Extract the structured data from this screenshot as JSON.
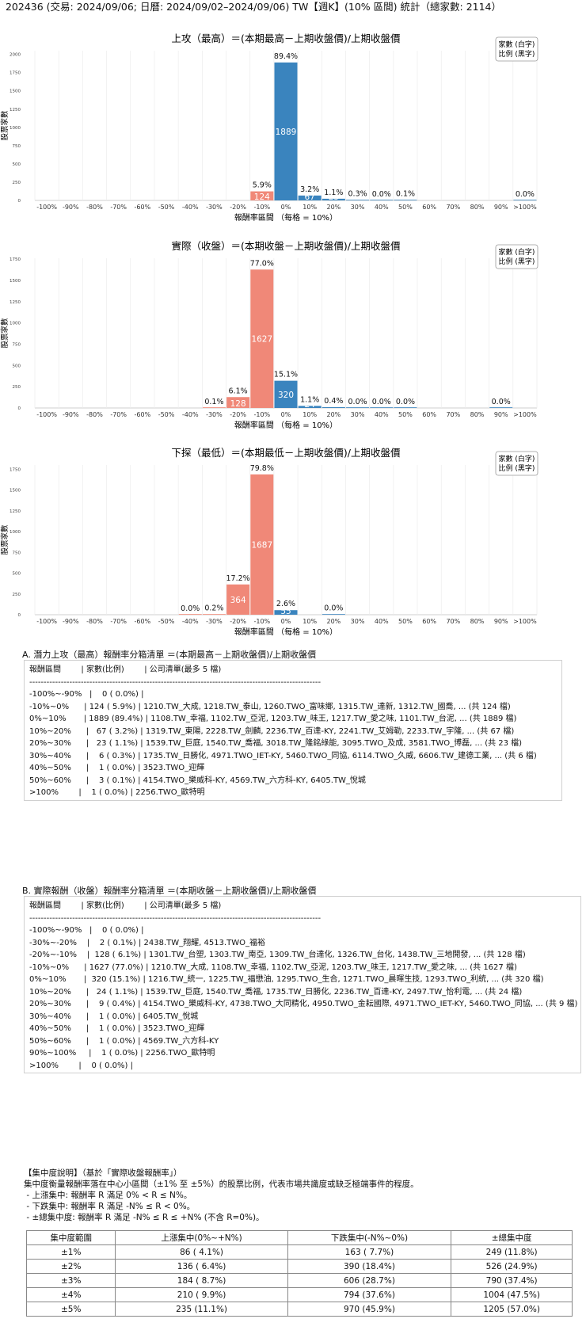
{
  "page_title": "202436 (交易: 2024/09/06; 日曆: 2024/09/02–2024/09/06) TW【週K】(10% 區間) 統計（總家數: 2114）",
  "legend_box": [
    "家數 (白字)",
    "比例 (黑字)"
  ],
  "chart_data": [
    {
      "type": "bar",
      "title": "上攻（最高）＝(本期最高－上期收盤價)/上期收盤價",
      "xlabel": "報酬率區間 （每格 = 10%）",
      "ylabel": "股票家數",
      "categories": [
        "-100%",
        "-90%",
        "-80%",
        "-70%",
        "-60%",
        "-50%",
        "-40%",
        "-30%",
        "-20%",
        "-10%",
        "0%",
        "10%",
        "20%",
        "30%",
        "40%",
        "50%",
        "60%",
        "70%",
        "80%",
        "90%",
        ">100%"
      ],
      "values": [
        0,
        0,
        0,
        0,
        0,
        0,
        0,
        0,
        0,
        124,
        1889,
        67,
        23,
        6,
        1,
        3,
        0,
        0,
        0,
        0,
        1
      ],
      "pct_labels": [
        "",
        "",
        "",
        "",
        "",
        "",
        "",
        "",
        "",
        "5.9%",
        "89.4%",
        "3.2%",
        "1.1%",
        "0.3%",
        "0.0%",
        "0.1%",
        "",
        "",
        "",
        "",
        "0.0%"
      ],
      "yticks": [
        0,
        250,
        500,
        750,
        1000,
        1250,
        1500,
        1750,
        2000
      ],
      "ylim": [
        0,
        2050
      ]
    },
    {
      "type": "bar",
      "title": "實際（收盤）＝(本期收盤－上期收盤價)/上期收盤價",
      "xlabel": "報酬率區間 （每格 = 10%）",
      "ylabel": "股票家數",
      "categories": [
        "-100%",
        "-90%",
        "-80%",
        "-70%",
        "-60%",
        "-50%",
        "-40%",
        "-30%",
        "-20%",
        "-10%",
        "0%",
        "10%",
        "20%",
        "30%",
        "40%",
        "50%",
        "60%",
        "70%",
        "80%",
        "90%",
        ">100%"
      ],
      "values": [
        0,
        0,
        0,
        0,
        0,
        0,
        0,
        2,
        128,
        1627,
        320,
        24,
        9,
        1,
        1,
        1,
        0,
        0,
        0,
        1,
        0
      ],
      "pct_labels": [
        "",
        "",
        "",
        "",
        "",
        "",
        "",
        "0.1%",
        "6.1%",
        "77.0%",
        "15.1%",
        "1.1%",
        "0.4%",
        "0.0%",
        "0.0%",
        "0.0%",
        "",
        "",
        "",
        "0.0%",
        ""
      ],
      "yticks": [
        0,
        250,
        500,
        750,
        1000,
        1250,
        1500,
        1750
      ],
      "ylim": [
        0,
        1760
      ]
    },
    {
      "type": "bar",
      "title": "下探（最低）＝(本期最低－上期收盤價)/上期收盤價",
      "xlabel": "報酬率區間 （每格 = 10%）",
      "ylabel": "股票家數",
      "categories": [
        "-100%",
        "-90%",
        "-80%",
        "-70%",
        "-60%",
        "-50%",
        "-40%",
        "-30%",
        "-20%",
        "-10%",
        "0%",
        "10%",
        "20%",
        "30%",
        "40%",
        "50%",
        "60%",
        "70%",
        "80%",
        "90%",
        ">100%"
      ],
      "values": [
        0,
        0,
        0,
        0,
        0,
        0,
        1,
        4,
        364,
        1687,
        55,
        0,
        3,
        0,
        0,
        0,
        0,
        0,
        0,
        0,
        0
      ],
      "pct_labels": [
        "",
        "",
        "",
        "",
        "",
        "",
        "0.0%",
        "0.2%",
        "17.2%",
        "79.8%",
        "2.6%",
        "",
        "0.0%",
        "",
        "",
        "",
        "",
        "",
        "",
        "",
        ""
      ],
      "yticks": [
        0,
        250,
        500,
        750,
        1000,
        1250,
        1500,
        1750
      ],
      "ylim": [
        0,
        1800
      ]
    }
  ],
  "colors": {
    "negative": "#f08878",
    "positive": "#3a84be"
  },
  "section_a": {
    "title": "A. 潛力上攻（最高）報酬率分箱清單 ＝(本期最高－上期收盤價)/上期收盤價",
    "lines": [
      "報酬區間        | 家數(比例)        | 公司清單(最多 5 檔)",
      "------------------------------------------------------------------------------------------------------",
      "-100%~-90%   |    0 ( 0.0%) |",
      "-10%~0%      | 124 ( 5.9%) | 1210.TW_大成, 1218.TW_泰山, 1260.TWO_富味鄉, 1315.TW_達新, 1312.TW_國喬, ... (共 124 檔)",
      "0%~10%       | 1889 (89.4%) | 1108.TW_幸福, 1102.TW_亞泥, 1203.TW_味王, 1217.TW_愛之味, 1101.TW_台泥, ... (共 1889 檔)",
      "10%~20%      |   67 ( 3.2%) | 1319.TW_東陽, 2228.TW_劍麟, 2236.TW_百達-KY, 2241.TW_艾姆勒, 2233.TW_宇隆, ... (共 67 檔)",
      "20%~30%      |   23 ( 1.1%) | 1539.TW_巨庭, 1540.TW_喬福, 3018.TW_隆銘綠能, 3095.TWO_及成, 3581.TWO_博磊, ... (共 23 檔)",
      "30%~40%      |    6 ( 0.3%) | 1735.TW_日勝化, 4971.TWO_IET-KY, 5460.TWO_同協, 6114.TWO_久威, 6606.TW_建德工業, ... (共 6 檔)",
      "40%~50%      |    1 ( 0.0%) | 3523.TWO_迎輝",
      "50%~60%      |    3 ( 0.1%) | 4154.TWO_樂威科-KY, 4569.TW_六方科-KY, 6405.TW_悅城",
      ">100%        |    1 ( 0.0%) | 2256.TWO_歐特明"
    ]
  },
  "section_b": {
    "title": "B. 實際報酬（收盤）報酬率分箱清單 ＝(本期收盤－上期收盤價)/上期收盤價",
    "lines": [
      "報酬區間        | 家數(比例)        | 公司清單(最多 5 檔)",
      "------------------------------------------------------------------------------------------------------",
      "-100%~-90%   |    0 ( 0.0%) |",
      "-30%~-20%    |    2 ( 0.1%) | 2438.TW_翔耀, 4513.TWO_福裕",
      "-20%~-10%    |  128 ( 6.1%) | 1301.TW_台塑, 1303.TW_南亞, 1309.TW_台達化, 1326.TW_台化, 1438.TW_三地開發, ... (共 128 檔)",
      "-10%~0%      | 1627 (77.0%) | 1210.TW_大成, 1108.TW_幸福, 1102.TW_亞泥, 1203.TW_味王, 1217.TW_愛之味, ... (共 1627 檔)",
      "0%~10%       |  320 (15.1%) | 1216.TW_統一, 1225.TW_福懋油, 1295.TWO_生合, 1271.TWO_晨暉生技, 1293.TWO_利統, ... (共 320 檔)",
      "10%~20%      |   24 ( 1.1%) | 1539.TW_巨庭, 1540.TW_喬福, 1735.TW_日勝化, 2236.TW_百達-KY, 2497.TW_怡利電, ... (共 24 檔)",
      "20%~30%      |    9 ( 0.4%) | 4154.TWO_樂威科-KY, 4738.TWO_大同精化, 4950.TWO_金耘國際, 4971.TWO_IET-KY, 5460.TWO_同協, ... (共 9 檔)",
      "30%~40%      |    1 ( 0.0%) | 6405.TW_悅城",
      "40%~50%      |    1 ( 0.0%) | 3523.TWO_迎輝",
      "50%~60%      |    1 ( 0.0%) | 4569.TW_六方科-KY",
      "90%~100%     |    1 ( 0.0%) | 2256.TWO_歐特明",
      ">100%        |    0 ( 0.0%) |"
    ]
  },
  "concentration": {
    "note_lines": [
      "【集中度說明】（基於「實際收盤報酬率」）",
      "集中度衡量報酬率落在中心小區間（±1% 至 ±5%）的股票比例，代表市場共識度或缺乏極端事件的程度。",
      " - 上漲集中: 報酬率 R 滿足 0% < R ≤ N%。",
      " - 下跌集中: 報酬率 R 滿足 -N% ≤ R < 0%。",
      " - ±總集中度: 報酬率 R 滿足 -N% ≤ R ≤ +N% (不含 R=0%)。"
    ],
    "headers": [
      "集中度範圍",
      "上漲集中(0%~+N%)",
      "下跌集中(-N%~0%)",
      "±總集中度"
    ],
    "rows": [
      [
        "±1%",
        "86 ( 4.1%)",
        "163 ( 7.7%)",
        "249 (11.8%)"
      ],
      [
        "±2%",
        "136 ( 6.4%)",
        "390 (18.4%)",
        "526 (24.9%)"
      ],
      [
        "±3%",
        "184 ( 8.7%)",
        "606 (28.7%)",
        "790 (37.4%)"
      ],
      [
        "±4%",
        "210 ( 9.9%)",
        "794 (37.6%)",
        "1004 (47.5%)"
      ],
      [
        "±5%",
        "235 (11.1%)",
        "970 (45.9%)",
        "1205 (57.0%)"
      ]
    ]
  }
}
